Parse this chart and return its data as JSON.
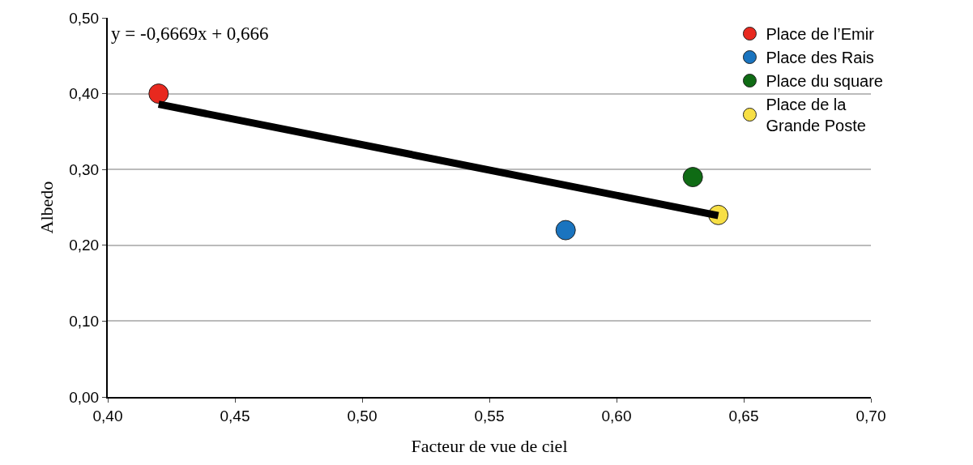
{
  "chart_data": {
    "type": "scatter",
    "xlabel": "Facteur de vue de ciel",
    "ylabel": "Albedo",
    "series": [
      {
        "name": "Place de l’Emir",
        "color": "#e8291f",
        "x": [
          0.42
        ],
        "values": [
          0.4
        ]
      },
      {
        "name": "Place des Rais",
        "color": "#1a74bf",
        "x": [
          0.58
        ],
        "values": [
          0.22
        ]
      },
      {
        "name": "Place du square",
        "color": "#0f6b14",
        "x": [
          0.63
        ],
        "values": [
          0.29
        ]
      },
      {
        "name": "Place de la Grande Poste",
        "color": "#f7df45",
        "x": [
          0.64
        ],
        "values": [
          0.24
        ]
      },
      {
        "type": "line",
        "color": "#000000",
        "x": [
          0.42,
          0.64
        ],
        "values": [
          0.386,
          0.2392
        ],
        "marker": "none"
      }
    ],
    "annotations": [
      "y = -0,6669x + 0,666"
    ],
    "xlim": [
      0.4,
      0.7
    ],
    "xticks": [
      {
        "value": 0.4,
        "label": "0,40"
      },
      {
        "value": 0.45,
        "label": "0,45"
      },
      {
        "value": 0.5,
        "label": "0,50"
      },
      {
        "value": 0.55,
        "label": "0,55"
      },
      {
        "value": 0.6,
        "label": "0,60"
      },
      {
        "value": 0.65,
        "label": "0,65"
      },
      {
        "value": 0.7,
        "label": "0,70"
      }
    ],
    "ylim": [
      0,
      0.5
    ],
    "yticks": [
      {
        "value": 0,
        "label": "0,00"
      },
      {
        "value": 0.1,
        "label": "0,10"
      },
      {
        "value": 0.2,
        "label": "0,20"
      },
      {
        "value": 0.3,
        "label": "0,30"
      },
      {
        "value": 0.4,
        "label": "0,40"
      },
      {
        "value": 0.5,
        "label": "0,50"
      }
    ],
    "grid": "y",
    "legend": "top right",
    "marker": "circle"
  }
}
